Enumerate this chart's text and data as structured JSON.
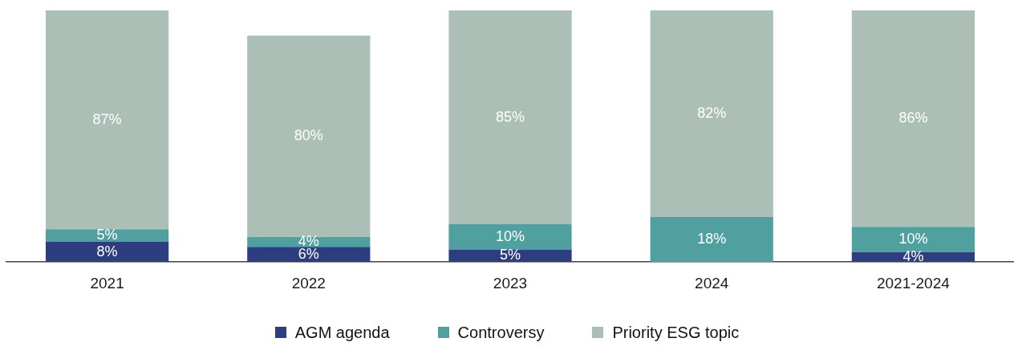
{
  "chart_data": {
    "type": "bar",
    "stacked": true,
    "legend": "bottom",
    "categories": [
      "2021",
      "2022",
      "2023",
      "2024",
      "2021-2024"
    ],
    "series": [
      {
        "name": "AGM agenda",
        "color": "#2e3c80",
        "values": [
          8,
          6,
          5,
          null,
          4
        ],
        "value_labels": [
          "8%",
          "6%",
          "5%",
          null,
          "4%"
        ]
      },
      {
        "name": "Controversy",
        "color": "#50a0a0",
        "values": [
          5,
          4,
          10,
          18,
          10
        ],
        "value_labels": [
          "5%",
          "4%",
          "10%",
          "18%",
          "10%"
        ]
      },
      {
        "name": "Priority ESG topic",
        "color": "#abbfb7",
        "values": [
          87,
          80,
          85,
          82,
          86
        ],
        "value_labels": [
          "87%",
          "80%",
          "85%",
          "82%",
          "86%"
        ]
      }
    ]
  }
}
